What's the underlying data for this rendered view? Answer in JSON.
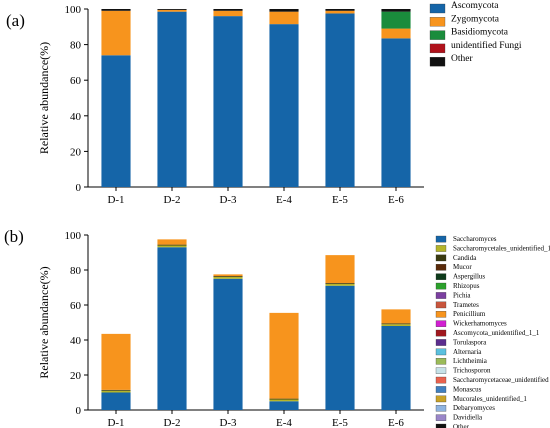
{
  "chart_data": [
    {
      "type": "bar",
      "stacked": true,
      "panel_label": "(a)",
      "ylabel": "Relative abundance(%)",
      "ylim": [
        0,
        100
      ],
      "yticks": [
        0,
        20,
        40,
        60,
        80,
        100
      ],
      "categories": [
        "D-1",
        "D-2",
        "D-3",
        "E-4",
        "E-5",
        "E-6"
      ],
      "legend_position": "right",
      "series": [
        {
          "name": "Ascomycota",
          "color": "#1565a8",
          "values": [
            74,
            98.5,
            96,
            91.5,
            97.5,
            83.5
          ]
        },
        {
          "name": "Zygomycota",
          "color": "#f7941d",
          "values": [
            25,
            1,
            3,
            7,
            1.5,
            5.5
          ]
        },
        {
          "name": "Basidiomycota",
          "color": "#1a8c3c",
          "values": [
            0,
            0,
            0,
            0,
            0,
            9.5
          ]
        },
        {
          "name": "unidentified Fungi",
          "color": "#b0121b",
          "values": [
            0,
            0,
            0,
            0,
            0,
            0
          ]
        },
        {
          "name": "Other",
          "color": "#111111",
          "values": [
            1,
            0.5,
            1,
            1.5,
            1,
            1.5
          ]
        }
      ]
    },
    {
      "type": "bar",
      "stacked": true,
      "panel_label": "(b)",
      "ylabel": "Relative abundance(%)",
      "ylim": [
        0,
        100
      ],
      "yticks": [
        0,
        20,
        40,
        60,
        80,
        100
      ],
      "categories": [
        "D-1",
        "D-2",
        "D-3",
        "E-4",
        "E-5",
        "E-6"
      ],
      "legend_position": "right",
      "series": [
        {
          "name": "Saccharomyces",
          "color": "#1565a8",
          "values": [
            10,
            93,
            75,
            5,
            71,
            48
          ]
        },
        {
          "name": "Saccharomycetales_unidentified_1",
          "color": "#b5b52a",
          "values": [
            1,
            1,
            1,
            1,
            1,
            1
          ]
        },
        {
          "name": "Candida",
          "color": "#3a3a10",
          "values": [
            0.5,
            0.5,
            0.5,
            0.5,
            0.5,
            0.5
          ]
        },
        {
          "name": "Mucor",
          "color": "#5a2a0a",
          "values": [
            0,
            0,
            0,
            0,
            0,
            0
          ]
        },
        {
          "name": "Aspergillus",
          "color": "#0d3a1a",
          "values": [
            0,
            0,
            0,
            0,
            0,
            0
          ]
        },
        {
          "name": "Rhizopus",
          "color": "#2ca02c",
          "values": [
            0,
            0,
            0,
            0,
            0,
            0
          ]
        },
        {
          "name": "Pichia",
          "color": "#7b3fa0",
          "values": [
            0,
            0,
            0,
            0,
            0,
            0
          ]
        },
        {
          "name": "Trametes",
          "color": "#c8553d",
          "values": [
            0,
            0,
            0,
            0,
            0,
            0
          ]
        },
        {
          "name": "Penicillium",
          "color": "#f7941d",
          "values": [
            32,
            3,
            1,
            49,
            16,
            8
          ]
        },
        {
          "name": "Wickerhamomyces",
          "color": "#d11fd1",
          "values": [
            0,
            0,
            0,
            0,
            0,
            0
          ]
        },
        {
          "name": "Ascomycota_unidentified_1_1",
          "color": "#a0181e",
          "values": [
            0,
            0,
            0,
            0,
            0,
            0
          ]
        },
        {
          "name": "Torulaspora",
          "color": "#5b2d8e",
          "values": [
            0,
            0,
            0,
            0,
            0,
            0
          ]
        },
        {
          "name": "Alternaria",
          "color": "#5bc0de",
          "values": [
            0,
            0,
            0,
            0,
            0,
            0
          ]
        },
        {
          "name": "Lichtheimia",
          "color": "#9bbb59",
          "values": [
            0,
            0,
            0,
            0,
            0,
            0
          ]
        },
        {
          "name": "Trichosporon",
          "color": "#c6e2e8",
          "values": [
            0,
            0,
            0,
            0,
            0,
            0
          ]
        },
        {
          "name": "Saccharomycetaceae_unidentified",
          "color": "#e8614d",
          "values": [
            0,
            0,
            0,
            0,
            0,
            0
          ]
        },
        {
          "name": "Monascus",
          "color": "#3f7fbf",
          "values": [
            0,
            0,
            0,
            0,
            0,
            0
          ]
        },
        {
          "name": "Mucorales_unidentified_1",
          "color": "#c9a227",
          "values": [
            0,
            0,
            0,
            0,
            0,
            0
          ]
        },
        {
          "name": "Debaryomyces",
          "color": "#8fb4e0",
          "values": [
            0,
            0,
            0,
            0,
            0,
            0
          ]
        },
        {
          "name": "Davidiella",
          "color": "#9a86c8",
          "values": [
            0,
            0,
            0,
            0,
            0,
            0
          ]
        },
        {
          "name": "Other",
          "color": "#111111",
          "values": [
            0,
            0,
            0,
            0,
            0,
            0
          ]
        }
      ]
    }
  ]
}
